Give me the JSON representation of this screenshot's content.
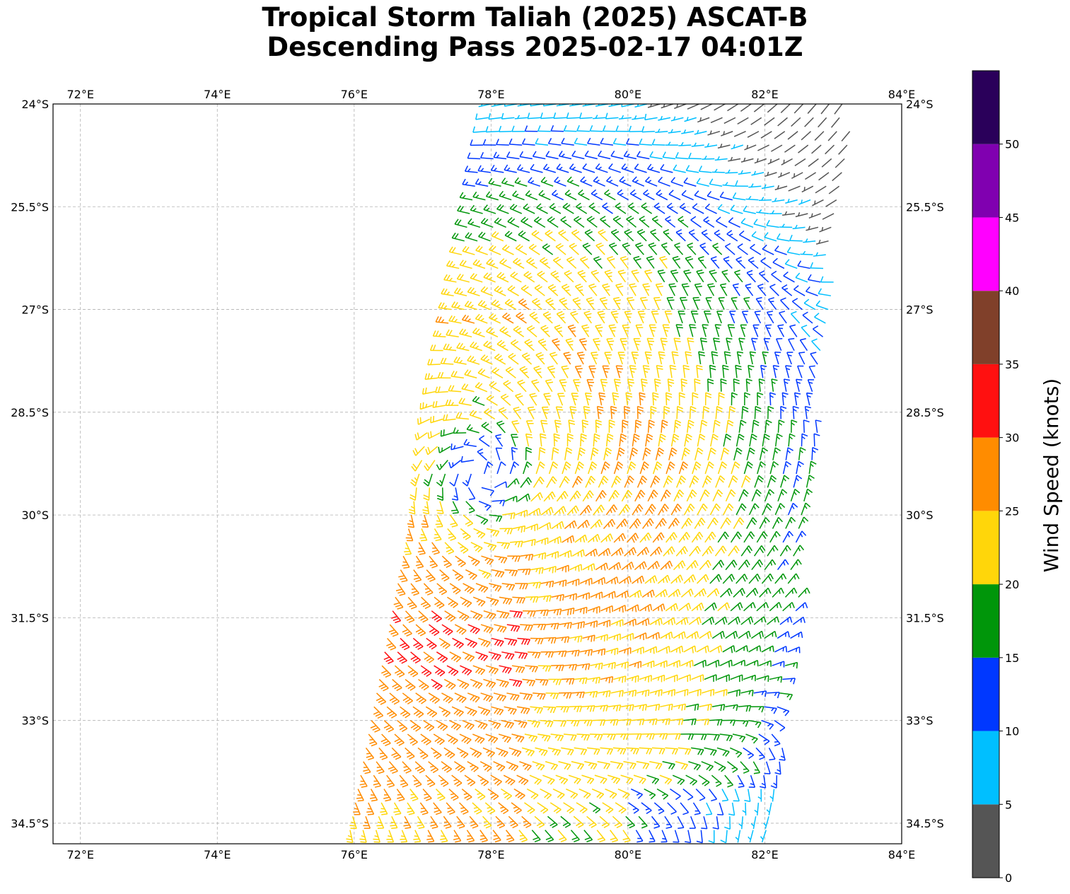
{
  "title": {
    "line1": "Tropical Storm Taliah (2025) ASCAT-B",
    "line2": "Descending Pass 2025-02-17 04:01Z"
  },
  "map": {
    "lon_range": [
      71.6,
      84.0
    ],
    "lat_range": [
      -34.8,
      -24.0
    ],
    "lon_ticks": [
      72,
      74,
      76,
      78,
      80,
      82,
      84
    ],
    "lon_tick_labels": [
      "72°E",
      "74°E",
      "76°E",
      "78°E",
      "80°E",
      "82°E",
      "84°E"
    ],
    "lat_ticks": [
      -24,
      -25.5,
      -27,
      -28.5,
      -30,
      -31.5,
      -33,
      -34.5
    ],
    "lat_tick_labels": [
      "24°S",
      "25.5°S",
      "27°S",
      "28.5°S",
      "30°S",
      "31.5°S",
      "33°S",
      "34.5°S"
    ],
    "gridlines": true,
    "gridline_style": "dashed gray"
  },
  "storm_center": {
    "lon": 77.85,
    "lat": -29.4
  },
  "swath": {
    "east_edge": [
      [
        83.3,
        -24.0
      ],
      [
        82.1,
        -34.8
      ]
    ],
    "west_edge": [
      [
        78.0,
        -24.0
      ],
      [
        75.9,
        -34.8
      ]
    ]
  },
  "colorbar": {
    "label": "Wind Speed (knots)",
    "bins": [
      {
        "min": 0,
        "max": 5,
        "color": "#555555"
      },
      {
        "min": 5,
        "max": 10,
        "color": "#00bfff"
      },
      {
        "min": 10,
        "max": 15,
        "color": "#0038ff"
      },
      {
        "min": 15,
        "max": 20,
        "color": "#00960a"
      },
      {
        "min": 20,
        "max": 25,
        "color": "#ffd60a"
      },
      {
        "min": 25,
        "max": 30,
        "color": "#ff8c00"
      },
      {
        "min": 30,
        "max": 35,
        "color": "#ff1010"
      },
      {
        "min": 35,
        "max": 40,
        "color": "#80402a"
      },
      {
        "min": 40,
        "max": 45,
        "color": "#ff00ff"
      },
      {
        "min": 45,
        "max": 50,
        "color": "#8000b0"
      },
      {
        "min": 50,
        "max": 55,
        "color": "#2a005a"
      }
    ],
    "ticks": [
      0,
      5,
      10,
      15,
      20,
      25,
      30,
      35,
      40,
      45,
      50
    ],
    "tick_labels": [
      "0",
      "5",
      "10",
      "15",
      "20",
      "25",
      "30",
      "35",
      "40",
      "45",
      "50"
    ]
  },
  "chart_data": {
    "type": "wind-barb map",
    "title": "Tropical Storm Taliah (2025) ASCAT-B Descending Pass 2025-02-17 04:01Z",
    "units": "knots",
    "description_of_field": [
      {
        "lat": -24.0,
        "lon_min": 78.0,
        "lon_max": 80.3,
        "speed_kt": 12
      },
      {
        "lat": -24.0,
        "lon_min": 80.3,
        "lon_max": 83.3,
        "speed_kt": 8
      },
      {
        "lat": -24.3,
        "lon_min": 82.4,
        "lon_max": 82.8,
        "speed_kt": 3
      },
      {
        "lat": -25.5,
        "lon_min": 77.3,
        "lon_max": 78.3,
        "speed_kt": 17
      },
      {
        "lat": -25.5,
        "lon_min": 78.3,
        "lon_max": 80.5,
        "speed_kt": 22
      },
      {
        "lat": -25.5,
        "lon_min": 80.5,
        "lon_max": 81.8,
        "speed_kt": 17
      },
      {
        "lat": -25.5,
        "lon_min": 81.8,
        "lon_max": 82.9,
        "speed_kt": 12
      },
      {
        "lat": -29.4,
        "lon_min": 77.5,
        "lon_max": 78.2,
        "speed_kt": 17
      },
      {
        "lat": -30.0,
        "lon_min": 78.5,
        "lon_max": 79.5,
        "speed_kt": 32
      },
      {
        "lat": -31.5,
        "lon_min": 76.6,
        "lon_max": 78.6,
        "speed_kt": 32
      },
      {
        "lat": -32.0,
        "lon_min": 76.5,
        "lon_max": 80.5,
        "speed_kt": 27
      },
      {
        "lat": -33.5,
        "lon_min": 76.3,
        "lon_max": 82.0,
        "speed_kt": 22
      },
      {
        "lat": -34.3,
        "lon_min": 80.3,
        "lon_max": 81.7,
        "speed_kt": 17
      }
    ]
  }
}
